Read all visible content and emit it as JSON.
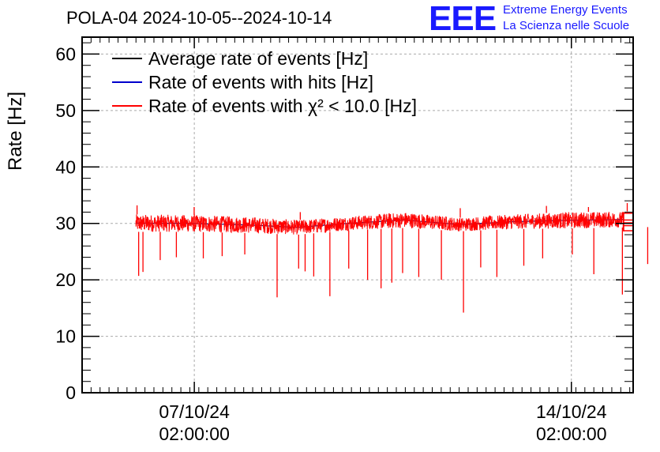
{
  "chart_data": {
    "type": "line",
    "title": "POLA-04 2024-10-05--2024-10-14",
    "ylabel": "Rate [Hz]",
    "xlabel": "",
    "ylim": [
      0,
      63
    ],
    "yticks": [
      0,
      10,
      20,
      30,
      40,
      50,
      60
    ],
    "yticks_labels": [
      "0",
      "10",
      "20",
      "30",
      "40",
      "50",
      "60"
    ],
    "x_unit": "days since 2024-10-05 00:00",
    "xlim": [
      0.0,
      10.23
    ],
    "xticks": [
      {
        "x": 2.083,
        "date": "07/10/24",
        "time": "02:00:00"
      },
      {
        "x": 9.083,
        "date": "14/10/24",
        "time": "02:00:00"
      }
    ],
    "grid": true,
    "legend_position": "top-left",
    "series": [
      {
        "name": "Average rate of events [Hz]",
        "color": "#000000",
        "visible_behind": true
      },
      {
        "name": "Rate of events with hits [Hz]",
        "color": "#0000cc",
        "visible_behind": true
      },
      {
        "name": "Rate of events with χ² < 10.0 [Hz]",
        "color": "#ff0000",
        "description": "dense noisy rate trace",
        "x_start": 1.0,
        "x_end": 10.82,
        "envelope": [
          {
            "x": 1.0,
            "low": 28.5,
            "high": 31.6
          },
          {
            "x": 2.0,
            "low": 28.5,
            "high": 31.5
          },
          {
            "x": 3.0,
            "low": 28.3,
            "high": 31.2
          },
          {
            "x": 4.0,
            "low": 28.0,
            "high": 30.6
          },
          {
            "x": 5.0,
            "low": 28.8,
            "high": 31.3
          },
          {
            "x": 6.0,
            "low": 29.2,
            "high": 32.0
          },
          {
            "x": 7.0,
            "low": 28.6,
            "high": 31.0
          },
          {
            "x": 8.0,
            "low": 29.0,
            "high": 31.6
          },
          {
            "x": 9.0,
            "low": 29.1,
            "high": 32.0
          },
          {
            "x": 10.82,
            "low": 29.4,
            "high": 32.2
          }
        ],
        "dips": [
          {
            "x": 1.05,
            "y": 20.7
          },
          {
            "x": 1.13,
            "y": 21.4
          },
          {
            "x": 1.45,
            "y": 23.5
          },
          {
            "x": 1.75,
            "y": 24.0
          },
          {
            "x": 2.25,
            "y": 23.8
          },
          {
            "x": 2.6,
            "y": 24.2
          },
          {
            "x": 3.02,
            "y": 24.5
          },
          {
            "x": 3.62,
            "y": 16.9
          },
          {
            "x": 4.02,
            "y": 22.0
          },
          {
            "x": 4.14,
            "y": 21.5
          },
          {
            "x": 4.3,
            "y": 20.6
          },
          {
            "x": 4.6,
            "y": 17.1
          },
          {
            "x": 4.95,
            "y": 22.0
          },
          {
            "x": 5.3,
            "y": 20.0
          },
          {
            "x": 5.55,
            "y": 18.5
          },
          {
            "x": 5.75,
            "y": 19.5
          },
          {
            "x": 5.95,
            "y": 21.2
          },
          {
            "x": 6.25,
            "y": 20.5
          },
          {
            "x": 6.67,
            "y": 20.0
          },
          {
            "x": 7.08,
            "y": 14.2
          },
          {
            "x": 7.4,
            "y": 22.2
          },
          {
            "x": 7.7,
            "y": 20.5
          },
          {
            "x": 8.2,
            "y": 22.5
          },
          {
            "x": 8.55,
            "y": 23.8
          },
          {
            "x": 9.1,
            "y": 24.5
          },
          {
            "x": 9.5,
            "y": 21.0
          },
          {
            "x": 10.03,
            "y": 17.4
          },
          {
            "x": 10.5,
            "y": 22.8
          }
        ],
        "spikes": [
          {
            "x": 1.02,
            "y": 33.2
          },
          {
            "x": 2.08,
            "y": 32.9
          },
          {
            "x": 4.05,
            "y": 32.0
          },
          {
            "x": 7.02,
            "y": 32.7
          },
          {
            "x": 8.62,
            "y": 33.1
          },
          {
            "x": 9.4,
            "y": 32.9
          },
          {
            "x": 10.12,
            "y": 33.6
          }
        ],
        "trailing_levels": [
          31.8,
          30.6,
          30.1,
          29.6,
          28.7
        ]
      }
    ]
  },
  "logo": {
    "mark": "EEE",
    "line1": "Extreme Energy Events",
    "line2": "La Scienza nelle Scuole"
  },
  "colors": {
    "logo": "#1a1aff",
    "grid": "#aaaaaa",
    "axis": "#000000"
  }
}
